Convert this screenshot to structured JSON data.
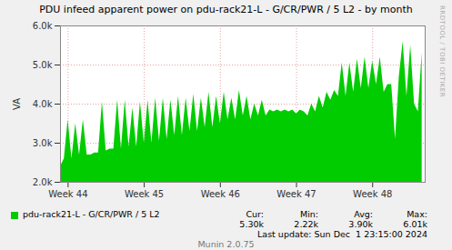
{
  "chart_data": {
    "type": "area",
    "title": "PDU infeed apparent power on pdu-rack21-L - G/CR/PWR / 5 L2 - by month",
    "ylabel": "VA",
    "watermark": "RRDTOOL / TOBI OETIKER",
    "x": [
      43.9,
      43.95,
      44,
      44.05,
      44.1,
      44.15,
      44.2,
      44.25,
      44.3,
      44.35,
      44.4,
      44.45,
      44.5,
      44.55,
      44.6,
      44.65,
      44.7,
      44.75,
      44.8,
      44.85,
      44.9,
      44.95,
      45,
      45.05,
      45.1,
      45.15,
      45.2,
      45.25,
      45.3,
      45.35,
      45.4,
      45.45,
      45.5,
      45.55,
      45.6,
      45.65,
      45.7,
      45.75,
      45.8,
      45.85,
      45.9,
      45.95,
      46,
      46.05,
      46.1,
      46.15,
      46.2,
      46.25,
      46.3,
      46.35,
      46.4,
      46.45,
      46.5,
      46.55,
      46.6,
      46.65,
      46.7,
      46.75,
      46.8,
      46.85,
      46.9,
      46.95,
      47,
      47.05,
      47.1,
      47.15,
      47.2,
      47.25,
      47.3,
      47.35,
      47.4,
      47.45,
      47.5,
      47.55,
      47.6,
      47.65,
      47.7,
      47.75,
      47.8,
      47.85,
      47.9,
      47.95,
      48,
      48.05,
      48.1,
      48.15,
      48.2,
      48.25,
      48.3,
      48.35,
      48.4,
      48.45,
      48.5,
      48.55,
      48.6,
      48.65
    ],
    "series": [
      {
        "name": "pdu-rack21-L - G/CR/PWR / 5 L2",
        "color": "#00cc00",
        "values": [
          2400,
          2600,
          3600,
          2600,
          3500,
          2700,
          3600,
          2700,
          2700,
          2750,
          2750,
          4050,
          2800,
          2850,
          2850,
          4100,
          2850,
          4100,
          2900,
          3900,
          2900,
          4050,
          3000,
          4100,
          3000,
          4150,
          3050,
          4150,
          3100,
          4100,
          3200,
          4200,
          3200,
          4150,
          3300,
          4250,
          3300,
          4150,
          3400,
          4300,
          3400,
          4200,
          3500,
          4300,
          3600,
          4150,
          3600,
          4350,
          3700,
          4200,
          3600,
          4000,
          3700,
          4100,
          3700,
          3850,
          3800,
          3850,
          3800,
          3850,
          3800,
          3850,
          3750,
          3850,
          3800,
          3700,
          4000,
          3800,
          4200,
          3900,
          4300,
          4100,
          4350,
          4200,
          5050,
          4200,
          5050,
          4300,
          5150,
          4400,
          5200,
          4400,
          5100,
          4500,
          5200,
          4300,
          4500,
          4500,
          3100,
          4700,
          5600,
          4200,
          5500,
          4000,
          3800,
          5300
        ]
      }
    ],
    "xlim": [
      43.9,
      48.69
    ],
    "xticks": [
      {
        "value": 44,
        "label": "Week 44"
      },
      {
        "value": 45,
        "label": "Week 45"
      },
      {
        "value": 46,
        "label": "Week 46"
      },
      {
        "value": 47,
        "label": "Week 47"
      },
      {
        "value": 48,
        "label": "Week 48"
      }
    ],
    "ylim": [
      2000,
      6000
    ],
    "yticks": [
      {
        "value": 2000,
        "label": "2.0k"
      },
      {
        "value": 3000,
        "label": "3.0k"
      },
      {
        "value": 4000,
        "label": "4.0k"
      },
      {
        "value": 5000,
        "label": "5.0k"
      },
      {
        "value": 6000,
        "label": "6.0k"
      }
    ],
    "grid": true,
    "legend_stats": [
      {
        "label": "Cur:",
        "value": "5.30k"
      },
      {
        "label": "Min:",
        "value": "2.22k"
      },
      {
        "label": "Avg:",
        "value": "3.90k"
      },
      {
        "label": "Max:",
        "value": "6.01k"
      }
    ],
    "last_update": "Last update: Sun Dec  1 23:15:00 2024",
    "footer": "Munin 2.0.75"
  }
}
